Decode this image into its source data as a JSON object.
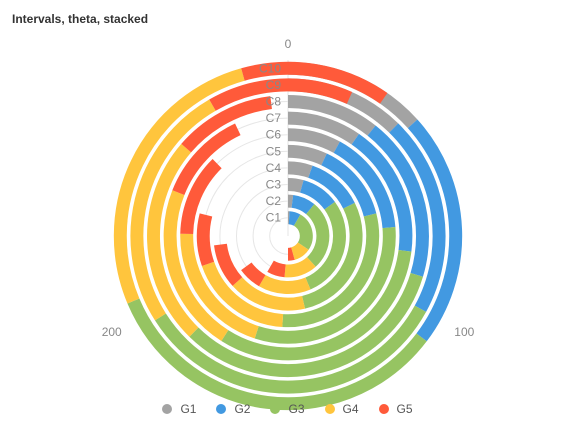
{
  "title": "Intervals, theta, stacked",
  "chart_data": {
    "type": "bar",
    "coordinate": "polar-theta",
    "stacked": true,
    "title": "Intervals, theta, stacked",
    "angle_axis": {
      "min": 0,
      "max": 300,
      "ticks": [
        0,
        100,
        200
      ]
    },
    "categories": [
      "C1",
      "C2",
      "C3",
      "C4",
      "C5",
      "C6",
      "C7",
      "C8",
      "C9",
      "C10"
    ],
    "series": [
      {
        "name": "G1",
        "color": "#a3a3a3",
        "values": [
          3,
          6,
          13,
          16,
          21,
          24,
          29,
          32,
          37,
          40
        ]
      },
      {
        "name": "G2",
        "color": "#4299e1",
        "values": [
          22,
          27,
          32,
          37,
          42,
          47,
          52,
          57,
          62,
          66
        ]
      },
      {
        "name": "G3",
        "color": "#96c462",
        "values": [
          78,
          82,
          86,
          86,
          90,
          94,
          96,
          98,
          99,
          100
        ]
      },
      {
        "name": "G4",
        "color": "#ffc53d",
        "values": [
          34,
          39,
          44,
          51,
          56,
          61,
          66,
          72,
          77,
          81
        ]
      },
      {
        "name": "G5",
        "color": "#ff5a3a",
        "values": [
          13,
          21,
          20,
          29,
          28,
          37,
          36,
          35,
          45,
          42
        ]
      }
    ],
    "legend": "bottom",
    "grid": true
  }
}
